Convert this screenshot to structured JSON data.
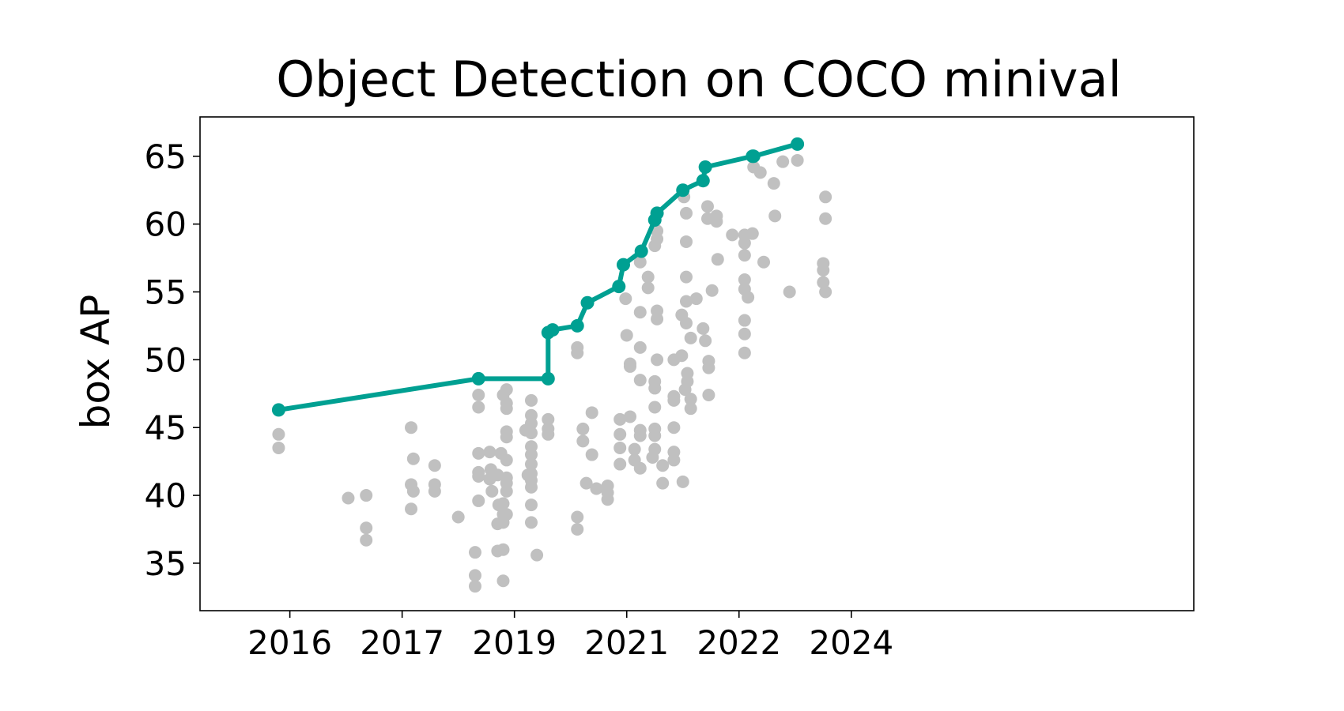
{
  "chart_data": {
    "type": "scatter",
    "title": "Object Detection on COCO minival",
    "xlabel": "",
    "ylabel": "box AP",
    "xlim": [
      2015.2,
      2024.05
    ],
    "ylim": [
      31.5,
      67.9
    ],
    "x_ticks": [
      {
        "value": 2016,
        "label": "2016"
      },
      {
        "value": 2017,
        "label": "2017"
      },
      {
        "value": 2018,
        "label": "2019"
      },
      {
        "value": 2019,
        "label": "2021"
      },
      {
        "value": 2020,
        "label": "2022"
      },
      {
        "value": 2021,
        "label": "2024"
      }
    ],
    "y_ticks": [
      35,
      40,
      45,
      50,
      55,
      60,
      65
    ],
    "grid": false,
    "colors": {
      "frontier": "#00a092",
      "other": "#c0c0c0"
    },
    "series": [
      {
        "name": "",
        "role": "other",
        "points": [
          [
            2015.9,
            44.5
          ],
          [
            2015.9,
            43.5
          ],
          [
            2016.52,
            39.8
          ],
          [
            2016.68,
            40.0
          ],
          [
            2016.68,
            37.6
          ],
          [
            2016.68,
            36.7
          ],
          [
            2017.08,
            45.0
          ],
          [
            2017.1,
            42.7
          ],
          [
            2017.08,
            40.8
          ],
          [
            2017.1,
            40.3
          ],
          [
            2017.08,
            39.0
          ],
          [
            2017.29,
            42.2
          ],
          [
            2017.29,
            40.8
          ],
          [
            2017.29,
            40.3
          ],
          [
            2017.5,
            38.4
          ],
          [
            2017.68,
            47.4
          ],
          [
            2017.68,
            46.5
          ],
          [
            2017.68,
            43.1
          ],
          [
            2017.68,
            41.7
          ],
          [
            2017.68,
            41.4
          ],
          [
            2017.68,
            39.6
          ],
          [
            2017.65,
            35.8
          ],
          [
            2017.65,
            34.1
          ],
          [
            2017.65,
            33.3
          ],
          [
            2017.78,
            43.2
          ],
          [
            2017.79,
            41.9
          ],
          [
            2017.78,
            41.2
          ],
          [
            2017.8,
            40.3
          ],
          [
            2017.85,
            41.5
          ],
          [
            2017.86,
            39.3
          ],
          [
            2017.85,
            37.9
          ],
          [
            2017.85,
            35.9
          ],
          [
            2017.9,
            47.4
          ],
          [
            2017.88,
            43.1
          ],
          [
            2017.9,
            39.4
          ],
          [
            2017.9,
            38.6
          ],
          [
            2017.9,
            38.0
          ],
          [
            2017.9,
            36.0
          ],
          [
            2017.9,
            33.7
          ],
          [
            2017.93,
            47.8
          ],
          [
            2017.93,
            46.8
          ],
          [
            2017.93,
            46.4
          ],
          [
            2017.93,
            44.7
          ],
          [
            2017.93,
            44.3
          ],
          [
            2017.93,
            42.6
          ],
          [
            2017.93,
            41.3
          ],
          [
            2017.93,
            40.9
          ],
          [
            2017.93,
            40.3
          ],
          [
            2017.93,
            38.6
          ],
          [
            2018.1,
            44.8
          ],
          [
            2018.15,
            47.0
          ],
          [
            2018.15,
            45.9
          ],
          [
            2018.15,
            45.3
          ],
          [
            2018.15,
            44.6
          ],
          [
            2018.15,
            43.6
          ],
          [
            2018.15,
            43.0
          ],
          [
            2018.15,
            42.3
          ],
          [
            2018.15,
            41.6
          ],
          [
            2018.15,
            41.1
          ],
          [
            2018.15,
            40.6
          ],
          [
            2018.12,
            41.5
          ],
          [
            2018.15,
            39.3
          ],
          [
            2018.15,
            38.0
          ],
          [
            2018.2,
            35.6
          ],
          [
            2018.3,
            45.6
          ],
          [
            2018.3,
            44.9
          ],
          [
            2018.3,
            44.5
          ],
          [
            2018.56,
            50.9
          ],
          [
            2018.56,
            50.5
          ],
          [
            2018.56,
            38.4
          ],
          [
            2018.56,
            37.5
          ],
          [
            2018.61,
            44.9
          ],
          [
            2018.61,
            44.0
          ],
          [
            2018.64,
            40.9
          ],
          [
            2018.69,
            46.1
          ],
          [
            2018.69,
            43.0
          ],
          [
            2018.73,
            40.5
          ],
          [
            2018.83,
            40.7
          ],
          [
            2018.83,
            40.2
          ],
          [
            2018.83,
            39.7
          ],
          [
            2018.94,
            45.6
          ],
          [
            2018.94,
            44.5
          ],
          [
            2018.94,
            43.5
          ],
          [
            2018.94,
            42.3
          ],
          [
            2018.99,
            54.5
          ],
          [
            2019.0,
            51.8
          ],
          [
            2019.03,
            49.7
          ],
          [
            2019.03,
            49.5
          ],
          [
            2019.03,
            45.8
          ],
          [
            2019.07,
            43.4
          ],
          [
            2019.07,
            42.6
          ],
          [
            2019.12,
            57.2
          ],
          [
            2019.12,
            53.5
          ],
          [
            2019.12,
            50.9
          ],
          [
            2019.12,
            48.5
          ],
          [
            2019.12,
            44.8
          ],
          [
            2019.12,
            44.4
          ],
          [
            2019.12,
            42.0
          ],
          [
            2019.19,
            56.1
          ],
          [
            2019.19,
            55.3
          ],
          [
            2019.23,
            42.8
          ],
          [
            2019.25,
            58.4
          ],
          [
            2019.25,
            46.5
          ],
          [
            2019.25,
            48.4
          ],
          [
            2019.25,
            47.9
          ],
          [
            2019.25,
            44.9
          ],
          [
            2019.25,
            44.4
          ],
          [
            2019.25,
            43.4
          ],
          [
            2019.27,
            59.5
          ],
          [
            2019.27,
            58.9
          ],
          [
            2019.27,
            53.6
          ],
          [
            2019.27,
            53.0
          ],
          [
            2019.27,
            50.0
          ],
          [
            2019.32,
            42.2
          ],
          [
            2019.32,
            40.9
          ],
          [
            2019.42,
            50.0
          ],
          [
            2019.42,
            47.3
          ],
          [
            2019.42,
            47.0
          ],
          [
            2019.42,
            45.0
          ],
          [
            2019.42,
            43.2
          ],
          [
            2019.42,
            42.6
          ],
          [
            2019.49,
            53.3
          ],
          [
            2019.49,
            50.3
          ],
          [
            2019.5,
            41.0
          ],
          [
            2019.51,
            62.0
          ],
          [
            2019.53,
            60.8
          ],
          [
            2019.53,
            58.7
          ],
          [
            2019.53,
            56.1
          ],
          [
            2019.53,
            54.3
          ],
          [
            2019.53,
            52.7
          ],
          [
            2019.52,
            47.8
          ],
          [
            2019.54,
            49.0
          ],
          [
            2019.54,
            48.4
          ],
          [
            2019.57,
            51.6
          ],
          [
            2019.57,
            47.1
          ],
          [
            2019.57,
            46.4
          ],
          [
            2019.62,
            54.5
          ],
          [
            2019.68,
            52.3
          ],
          [
            2019.7,
            51.4
          ],
          [
            2019.72,
            61.3
          ],
          [
            2019.72,
            60.4
          ],
          [
            2019.73,
            49.9
          ],
          [
            2019.73,
            49.4
          ],
          [
            2019.73,
            47.4
          ],
          [
            2019.76,
            55.1
          ],
          [
            2019.8,
            60.6
          ],
          [
            2019.8,
            60.2
          ],
          [
            2019.81,
            57.4
          ],
          [
            2019.94,
            59.2
          ],
          [
            2020.05,
            59.2
          ],
          [
            2020.05,
            58.6
          ],
          [
            2020.05,
            57.7
          ],
          [
            2020.05,
            55.9
          ],
          [
            2020.05,
            55.2
          ],
          [
            2020.05,
            52.9
          ],
          [
            2020.05,
            51.9
          ],
          [
            2020.05,
            50.5
          ],
          [
            2020.08,
            54.6
          ],
          [
            2020.12,
            59.3
          ],
          [
            2020.13,
            64.2
          ],
          [
            2020.19,
            63.8
          ],
          [
            2020.22,
            57.2
          ],
          [
            2020.31,
            63.0
          ],
          [
            2020.32,
            60.6
          ],
          [
            2020.39,
            64.6
          ],
          [
            2020.45,
            55.0
          ],
          [
            2020.52,
            64.7
          ],
          [
            2020.77,
            62.0
          ],
          [
            2020.77,
            60.4
          ],
          [
            2020.75,
            57.1
          ],
          [
            2020.75,
            56.6
          ],
          [
            2020.75,
            55.7
          ],
          [
            2020.77,
            55.0
          ]
        ]
      },
      {
        "name": "",
        "role": "frontier",
        "points": [
          [
            2015.9,
            46.3
          ],
          [
            2017.68,
            48.6
          ],
          [
            2018.3,
            48.6
          ],
          [
            2018.3,
            52.0
          ],
          [
            2018.34,
            52.2
          ],
          [
            2018.56,
            52.5
          ],
          [
            2018.65,
            54.2
          ],
          [
            2018.93,
            55.4
          ],
          [
            2018.97,
            57.0
          ],
          [
            2019.13,
            58.0
          ],
          [
            2019.25,
            60.3
          ],
          [
            2019.27,
            60.8
          ],
          [
            2019.5,
            62.5
          ],
          [
            2019.68,
            63.2
          ],
          [
            2019.7,
            64.2
          ],
          [
            2020.12,
            65.0
          ],
          [
            2020.13,
            65.0
          ],
          [
            2020.52,
            65.9
          ]
        ]
      }
    ]
  }
}
